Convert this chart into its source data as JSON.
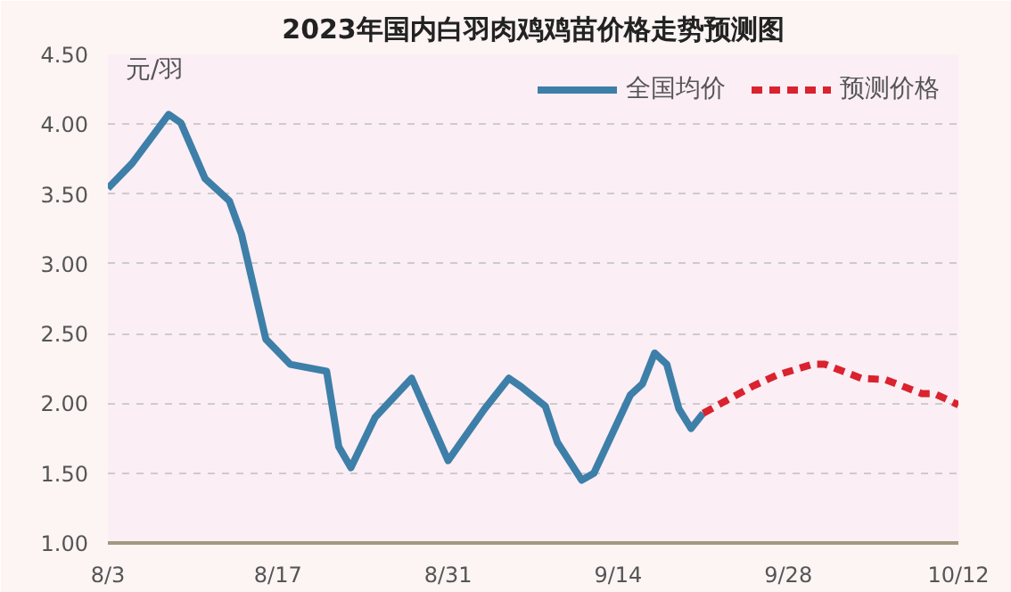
{
  "chart_data": {
    "type": "line",
    "title": "2023年国内白羽肉鸡鸡苗价格走势预测图",
    "ylabel": "元/羽",
    "xlim": [
      "2023-08-03",
      "2023-10-12"
    ],
    "xticks": [
      {
        "value": "2023-08-03",
        "label": "8/3"
      },
      {
        "value": "2023-08-17",
        "label": "8/17"
      },
      {
        "value": "2023-08-31",
        "label": "8/31"
      },
      {
        "value": "2023-09-14",
        "label": "9/14"
      },
      {
        "value": "2023-09-28",
        "label": "9/28"
      },
      {
        "value": "2023-10-12",
        "label": "10/12"
      }
    ],
    "ylim": [
      1.0,
      4.5
    ],
    "yticks": [
      {
        "value": 1.0,
        "label": "1.00"
      },
      {
        "value": 1.5,
        "label": "1.50"
      },
      {
        "value": 2.0,
        "label": "2.00"
      },
      {
        "value": 2.5,
        "label": "2.50"
      },
      {
        "value": 3.0,
        "label": "3.00"
      },
      {
        "value": 3.5,
        "label": "3.50"
      },
      {
        "value": 4.0,
        "label": "4.00"
      },
      {
        "value": 4.5,
        "label": "4.50"
      }
    ],
    "grid": "y",
    "legend": "top right",
    "series": [
      {
        "name": "全国均价",
        "color": "#3d7fa8",
        "line_style": "solid",
        "x": [
          "2023-08-03",
          "2023-08-05",
          "2023-08-08",
          "2023-08-09",
          "2023-08-11",
          "2023-08-13",
          "2023-08-14",
          "2023-08-16",
          "2023-08-18",
          "2023-08-21",
          "2023-08-22",
          "2023-08-23",
          "2023-08-25",
          "2023-08-28",
          "2023-08-31",
          "2023-09-03",
          "2023-09-05",
          "2023-09-06",
          "2023-09-08",
          "2023-09-09",
          "2023-09-11",
          "2023-09-12",
          "2023-09-15",
          "2023-09-16",
          "2023-09-17",
          "2023-09-18",
          "2023-09-19",
          "2023-09-20",
          "2023-09-21"
        ],
        "values": [
          3.54,
          3.72,
          4.07,
          4.01,
          3.61,
          3.45,
          3.21,
          2.46,
          2.28,
          2.23,
          1.69,
          1.54,
          1.9,
          2.18,
          1.59,
          1.96,
          2.18,
          2.12,
          1.98,
          1.72,
          1.45,
          1.5,
          2.06,
          2.14,
          2.36,
          2.28,
          1.96,
          1.82,
          1.93
        ]
      },
      {
        "name": "预测价格",
        "color": "#d9232e",
        "line_style": "dashed",
        "x": [
          "2023-09-21",
          "2023-09-25",
          "2023-09-27",
          "2023-09-30",
          "2023-10-01",
          "2023-10-04",
          "2023-10-06",
          "2023-10-09",
          "2023-10-10",
          "2023-10-12"
        ],
        "values": [
          1.93,
          2.12,
          2.2,
          2.28,
          2.28,
          2.18,
          2.17,
          2.07,
          2.07,
          1.99
        ]
      }
    ]
  }
}
